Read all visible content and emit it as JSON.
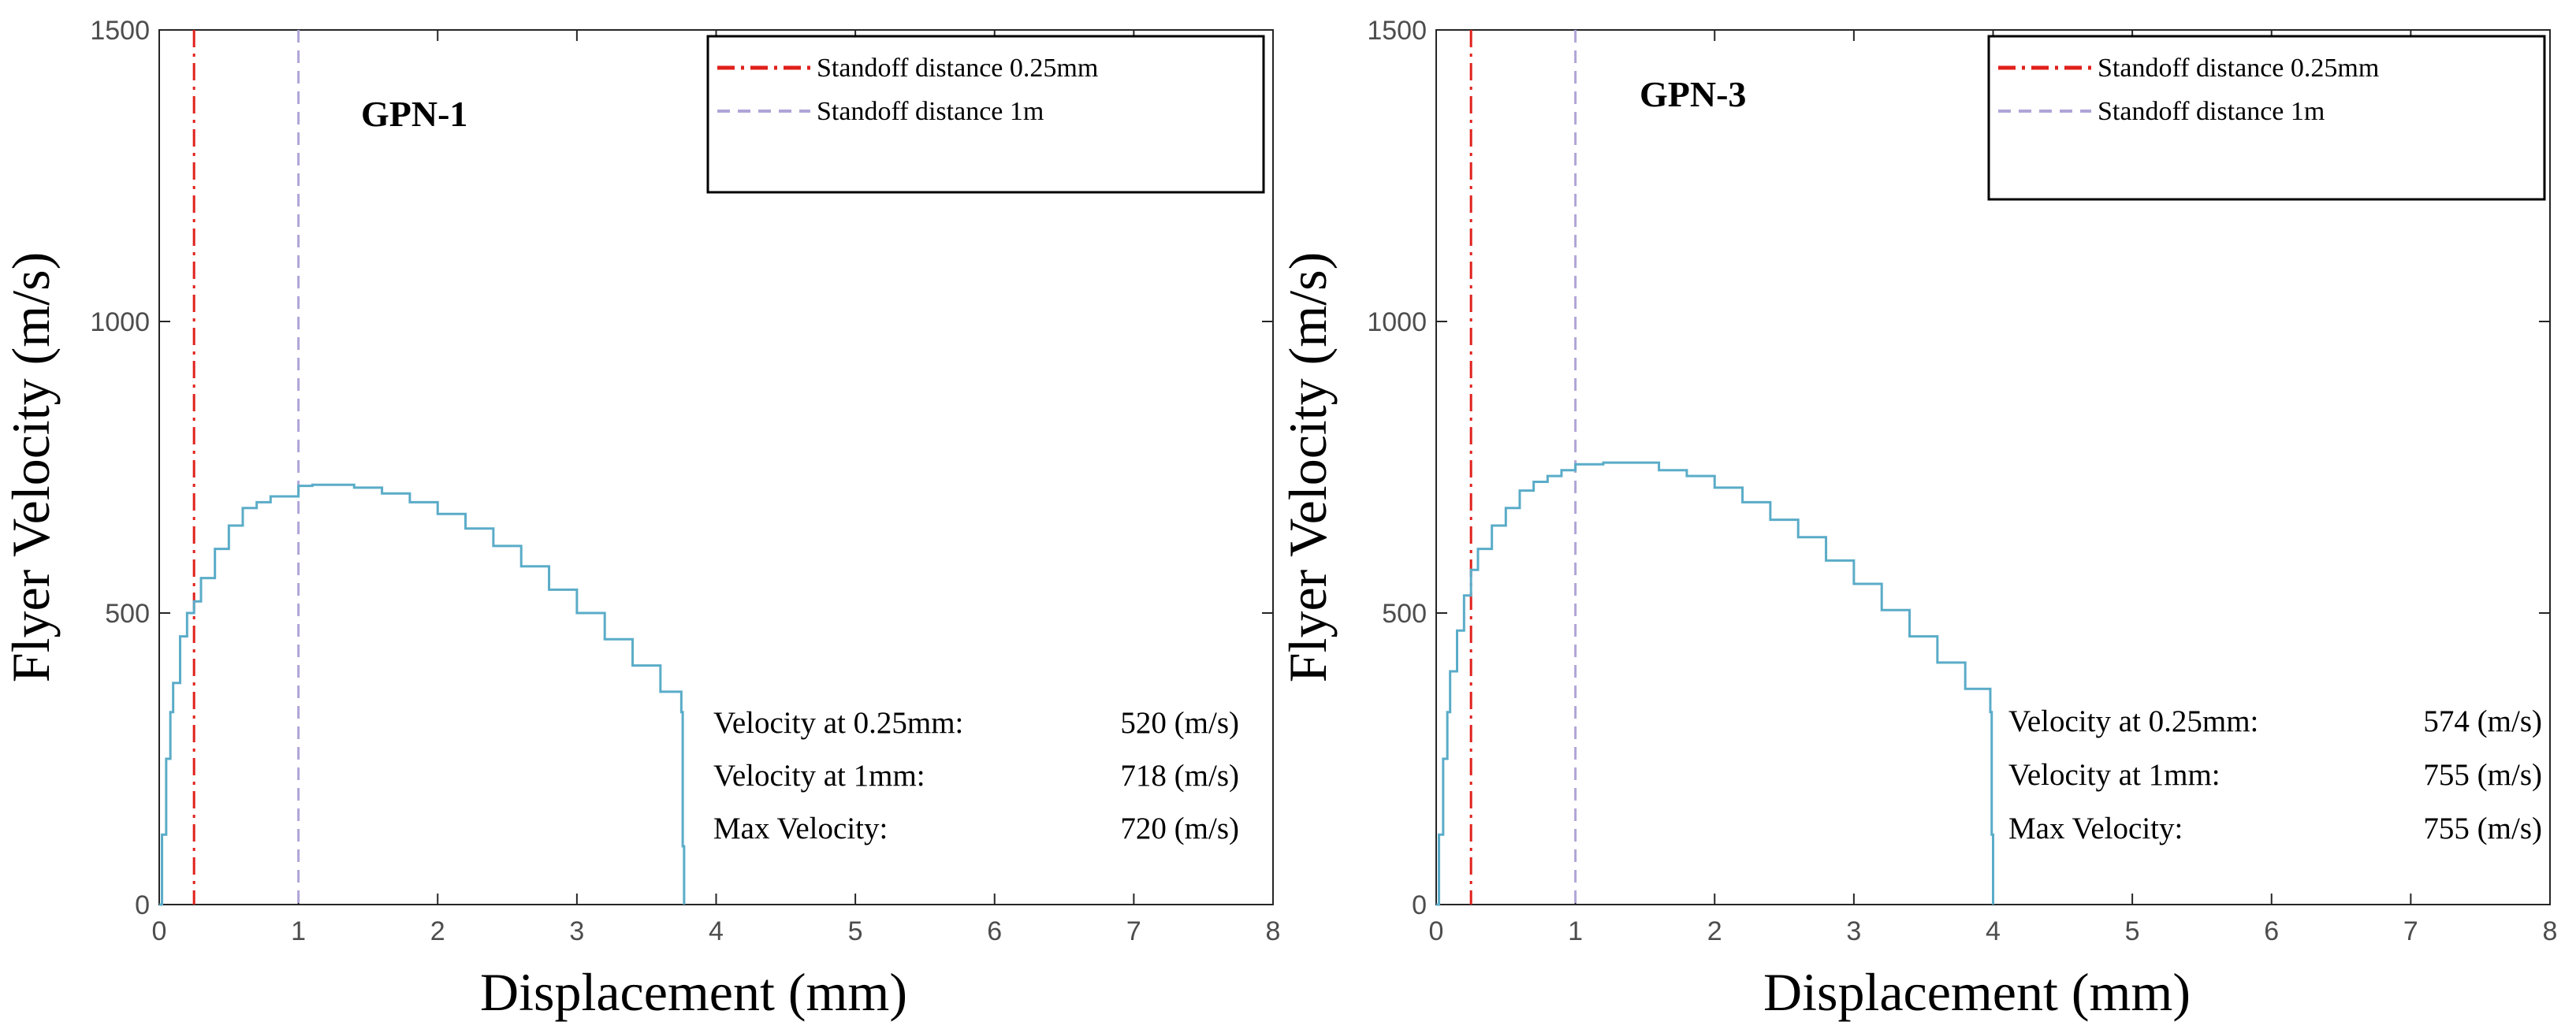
{
  "chart_data": [
    {
      "type": "line",
      "title": "GPN-1",
      "xlabel": "Displacement (mm)",
      "ylabel": "Flyer Velocity (m/s)",
      "xlim": [
        0,
        8
      ],
      "ylim": [
        0,
        1500
      ],
      "x_ticks": [
        "0",
        "1",
        "2",
        "3",
        "4",
        "5",
        "6",
        "7",
        "8"
      ],
      "y_ticks": [
        "0",
        "500",
        "1000",
        "1500"
      ],
      "legend": {
        "position": "top-right",
        "entries": [
          {
            "label": "Standoff distance 0.25mm",
            "style": "dash-dot",
            "color": "#e0201b"
          },
          {
            "label": "Standoff distance 1m",
            "style": "dashed",
            "color": "#b0a4d8"
          }
        ]
      },
      "reference_lines": [
        {
          "x": 0.25,
          "color": "#e0201b",
          "style": "dash-dot"
        },
        {
          "x": 1,
          "color": "#b0a4d8",
          "style": "dashed"
        }
      ],
      "series": [
        {
          "name": "Flyer velocity",
          "color": "#5aacc8",
          "x": [
            0,
            0.02,
            0.05,
            0.08,
            0.1,
            0.15,
            0.2,
            0.25,
            0.3,
            0.4,
            0.5,
            0.6,
            0.7,
            0.8,
            0.9,
            1.0,
            1.1,
            1.2,
            1.4,
            1.6,
            1.8,
            2.0,
            2.2,
            2.4,
            2.6,
            2.8,
            3.0,
            3.2,
            3.4,
            3.6,
            3.75,
            3.76,
            3.77
          ],
          "y": [
            0,
            120,
            250,
            330,
            380,
            460,
            500,
            520,
            560,
            610,
            650,
            680,
            690,
            700,
            700,
            718,
            720,
            720,
            715,
            705,
            690,
            670,
            645,
            615,
            580,
            540,
            500,
            455,
            410,
            365,
            330,
            100,
            0
          ]
        }
      ],
      "annotations": [
        {
          "label": "Velocity at 0.25mm:",
          "value": "520 (m/s)"
        },
        {
          "label": "Velocity at 1mm:",
          "value": "718 (m/s)"
        },
        {
          "label": "Max Velocity:",
          "value": "720 (m/s)"
        }
      ]
    },
    {
      "type": "line",
      "title": "GPN-3",
      "xlabel": "Displacement (mm)",
      "ylabel": "Flyer Velocity (m/s)",
      "xlim": [
        0,
        8
      ],
      "ylim": [
        0,
        1500
      ],
      "x_ticks": [
        "0",
        "1",
        "2",
        "3",
        "4",
        "5",
        "6",
        "7",
        "8"
      ],
      "y_ticks": [
        "0",
        "500",
        "1000",
        "1500"
      ],
      "legend": {
        "position": "top-right",
        "entries": [
          {
            "label": "Standoff distance 0.25mm",
            "style": "dash-dot",
            "color": "#e0201b"
          },
          {
            "label": "Standoff distance 1m",
            "style": "dashed",
            "color": "#b0a4d8"
          }
        ]
      },
      "reference_lines": [
        {
          "x": 0.25,
          "color": "#e0201b",
          "style": "dash-dot"
        },
        {
          "x": 1,
          "color": "#b0a4d8",
          "style": "dashed"
        }
      ],
      "series": [
        {
          "name": "Flyer velocity",
          "color": "#5aacc8",
          "x": [
            0,
            0.02,
            0.05,
            0.08,
            0.1,
            0.15,
            0.2,
            0.25,
            0.3,
            0.4,
            0.5,
            0.6,
            0.7,
            0.8,
            0.9,
            1.0,
            1.2,
            1.5,
            1.6,
            1.8,
            2.0,
            2.2,
            2.4,
            2.6,
            2.8,
            3.0,
            3.2,
            3.4,
            3.6,
            3.8,
            3.98,
            3.99,
            4.0
          ],
          "y": [
            0,
            120,
            250,
            330,
            400,
            470,
            530,
            574,
            610,
            650,
            680,
            710,
            725,
            735,
            745,
            755,
            758,
            758,
            745,
            735,
            715,
            690,
            660,
            630,
            590,
            550,
            505,
            460,
            415,
            370,
            330,
            120,
            0
          ]
        }
      ],
      "annotations": [
        {
          "label": "Velocity at 0.25mm:",
          "value": "574 (m/s)"
        },
        {
          "label": "Velocity at 1mm:",
          "value": "755 (m/s)"
        },
        {
          "label": "Max Velocity:",
          "value": "755 (m/s)"
        }
      ]
    }
  ]
}
